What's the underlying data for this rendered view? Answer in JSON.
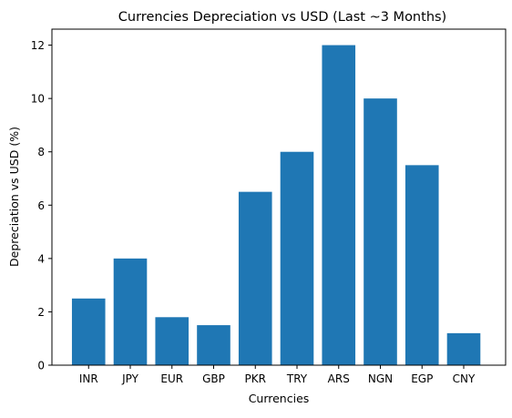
{
  "chart_data": {
    "type": "bar",
    "title": "Currencies Depreciation vs USD (Last ~3 Months)",
    "xlabel": "Currencies",
    "ylabel": "Depreciation vs USD (%)",
    "categories": [
      "INR",
      "JPY",
      "EUR",
      "GBP",
      "PKR",
      "TRY",
      "ARS",
      "NGN",
      "EGP",
      "CNY"
    ],
    "values": [
      2.5,
      4.0,
      1.8,
      1.5,
      6.5,
      8.0,
      12.0,
      10.0,
      7.5,
      1.2
    ],
    "ylim": [
      0,
      12.6
    ],
    "yticks": [
      0,
      2,
      4,
      6,
      8,
      10,
      12
    ],
    "grid": false,
    "legend": "none",
    "bar_color": "#1f77b4"
  }
}
